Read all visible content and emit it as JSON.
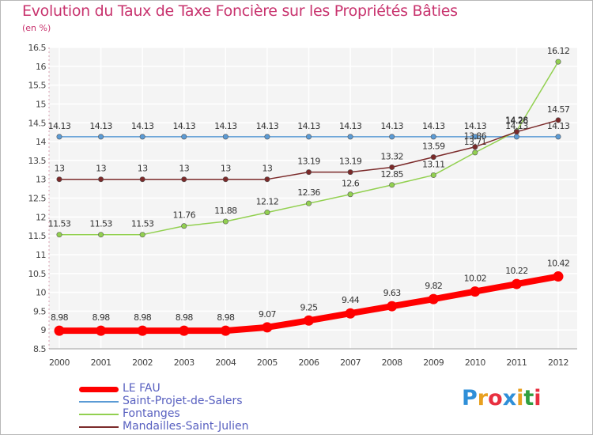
{
  "header": {
    "title": "Evolution du Taux de Taxe Foncière sur les Propriétés Bâties",
    "unit": "(en %)"
  },
  "logo": {
    "letters": [
      "P",
      "r",
      "o",
      "x",
      "i",
      "t",
      "i"
    ],
    "colors": [
      "#2f8fd8",
      "#e8a020",
      "#e83040",
      "#2f8fd8",
      "#e8a020",
      "#30a040",
      "#e83040"
    ]
  },
  "chart_data": {
    "type": "line",
    "title": "Evolution du Taux de Taxe Foncière sur les Propriétés Bâties",
    "ylabel": "(en %)",
    "xlabel": "",
    "ylim": [
      8.5,
      16.5
    ],
    "yticks": [
      "8.5",
      "9",
      "9.5",
      "10",
      "10.5",
      "11",
      "11.5",
      "12",
      "12.5",
      "13",
      "13.5",
      "14",
      "14.5",
      "15",
      "15.5",
      "16",
      "16.5"
    ],
    "categories": [
      "2000",
      "2001",
      "2002",
      "2003",
      "2004",
      "2005",
      "2006",
      "2007",
      "2008",
      "2009",
      "2010",
      "2011",
      "2012"
    ],
    "series": [
      {
        "name": "Saint-Projet-de-Salers",
        "color": "#5b9bd5",
        "values": [
          14.13,
          14.13,
          14.13,
          14.13,
          14.13,
          14.13,
          14.13,
          14.13,
          14.13,
          14.13,
          14.13,
          14.13,
          14.13
        ],
        "labels": [
          "14.13",
          "14.13",
          "14.13",
          "14.13",
          "14.13",
          "14.13",
          "14.13",
          "14.13",
          "14.13",
          "14.13",
          "14.13",
          "14.13",
          "14.13"
        ]
      },
      {
        "name": "Fontanges",
        "color": "#92d050",
        "values": [
          11.53,
          11.53,
          11.53,
          11.76,
          11.88,
          12.12,
          12.36,
          12.6,
          12.85,
          13.11,
          13.71,
          14.28,
          16.12
        ],
        "labels": [
          "11.53",
          "11.53",
          "11.53",
          "11.76",
          "11.88",
          "12.12",
          "12.36",
          "12.6",
          "12.85",
          "13.11",
          "13.71",
          "14.28",
          "16.12"
        ]
      },
      {
        "name": "Mandailles-Saint-Julien",
        "color": "#7b2a2a",
        "values": [
          13,
          13,
          13,
          13,
          13,
          13,
          13.19,
          13.19,
          13.32,
          13.59,
          13.86,
          14.26,
          14.57
        ],
        "labels": [
          "13",
          "13",
          "13",
          "13",
          "13",
          "13",
          "13.19",
          "13.19",
          "13.32",
          "13.59",
          "13.86",
          "14.26",
          "14.57"
        ]
      },
      {
        "name": "LE FAU",
        "color": "#ff0000",
        "values": [
          8.98,
          8.98,
          8.98,
          8.98,
          8.98,
          9.07,
          9.25,
          9.44,
          9.63,
          9.82,
          10.02,
          10.22,
          10.42
        ],
        "labels": [
          "8.98",
          "8.98",
          "8.98",
          "8.98",
          "8.98",
          "9.07",
          "9.25",
          "9.44",
          "9.63",
          "9.82",
          "10.02",
          "10.22",
          "10.42"
        ]
      }
    ],
    "legend": [
      "LE FAU",
      "Saint-Projet-de-Salers",
      "Fontanges",
      "Mandailles-Saint-Julien"
    ]
  }
}
